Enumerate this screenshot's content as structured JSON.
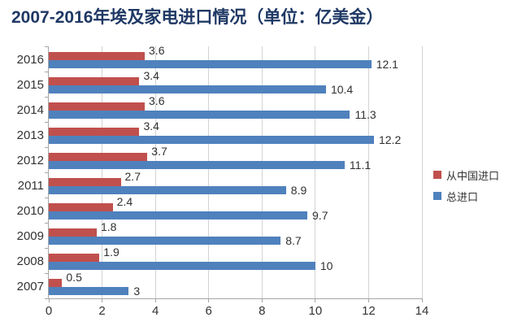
{
  "title": "2007-2016年埃及家电进口情况（单位：亿美金）",
  "colors": {
    "title": "#1F3864",
    "series_china": "#C0504D",
    "series_total": "#4F81BD",
    "gridline": "#D3D3D3",
    "axis": "#A6A6A6",
    "label_text": "#303030"
  },
  "chart_data": {
    "type": "bar",
    "orientation": "horizontal",
    "title": "2007-2016年埃及家电进口情况（单位：亿美金）",
    "categories": [
      "2016",
      "2015",
      "2014",
      "2013",
      "2012",
      "2011",
      "2010",
      "2009",
      "2008",
      "2007"
    ],
    "categories_order": "top-to-bottom",
    "series": [
      {
        "name": "从中国进口",
        "color": "#C0504D",
        "values": [
          3.6,
          3.4,
          3.6,
          3.4,
          3.7,
          2.7,
          2.4,
          1.8,
          1.9,
          0.5
        ]
      },
      {
        "name": "总进口",
        "color": "#4F81BD",
        "values": [
          12.1,
          10.4,
          11.3,
          12.2,
          11.1,
          8.9,
          9.7,
          8.7,
          10,
          3
        ]
      }
    ],
    "xticks": [
      0,
      2,
      4,
      6,
      8,
      10,
      12,
      14
    ],
    "xlim": [
      0,
      14
    ],
    "xlabel": "",
    "ylabel": "",
    "grid": true,
    "data_labels": true,
    "legend_position": "right"
  },
  "legend": {
    "items": [
      {
        "label": "从中国进口",
        "color": "#C0504D"
      },
      {
        "label": "总进口",
        "color": "#4F81BD"
      }
    ]
  }
}
